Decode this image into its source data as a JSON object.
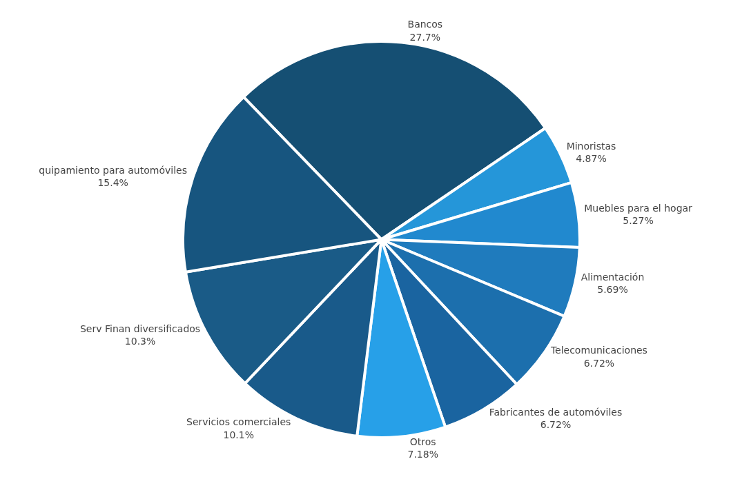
{
  "chart_data": {
    "type": "pie",
    "categories": [
      "Bancos",
      "Minoristas",
      "Muebles para el hogar",
      "Alimentación",
      "Telecomunicaciones",
      "Fabricantes de automóviles",
      "Otros",
      "Servicios comerciales",
      "Serv Finan diversificados",
      "quipamiento para automóviles"
    ],
    "values": [
      27.7,
      4.87,
      5.27,
      5.69,
      6.72,
      6.72,
      7.18,
      10.1,
      10.3,
      15.4
    ],
    "value_labels": [
      "27.7%",
      "4.87%",
      "5.27%",
      "5.69%",
      "6.72%",
      "6.72%",
      "7.18%",
      "10.1%",
      "10.3%",
      "15.4%"
    ],
    "colors": [
      "#154f73",
      "#2596d9",
      "#2189cf",
      "#1f7bbd",
      "#1c6fad",
      "#1a64a0",
      "#27a0e8",
      "#195a8a",
      "#1a5b87",
      "#17557f"
    ],
    "legend": false
  }
}
